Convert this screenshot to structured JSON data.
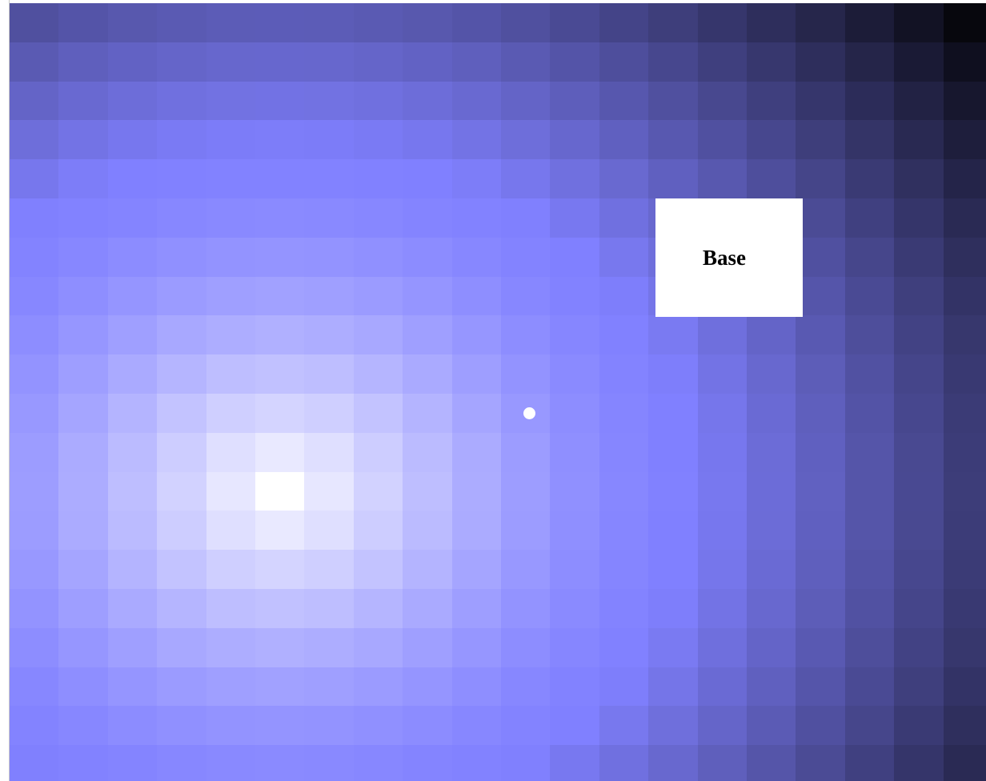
{
  "base": {
    "label": "Base"
  },
  "heatmap": {
    "rows": 20,
    "cols": 20,
    "hot_cell": {
      "row": 12,
      "col": 5
    },
    "cold_corner": "top-right",
    "color_low": "#000000",
    "color_mid": "#8080ff",
    "color_high": "#ffffff"
  },
  "player": {
    "color": "#ffffff"
  }
}
